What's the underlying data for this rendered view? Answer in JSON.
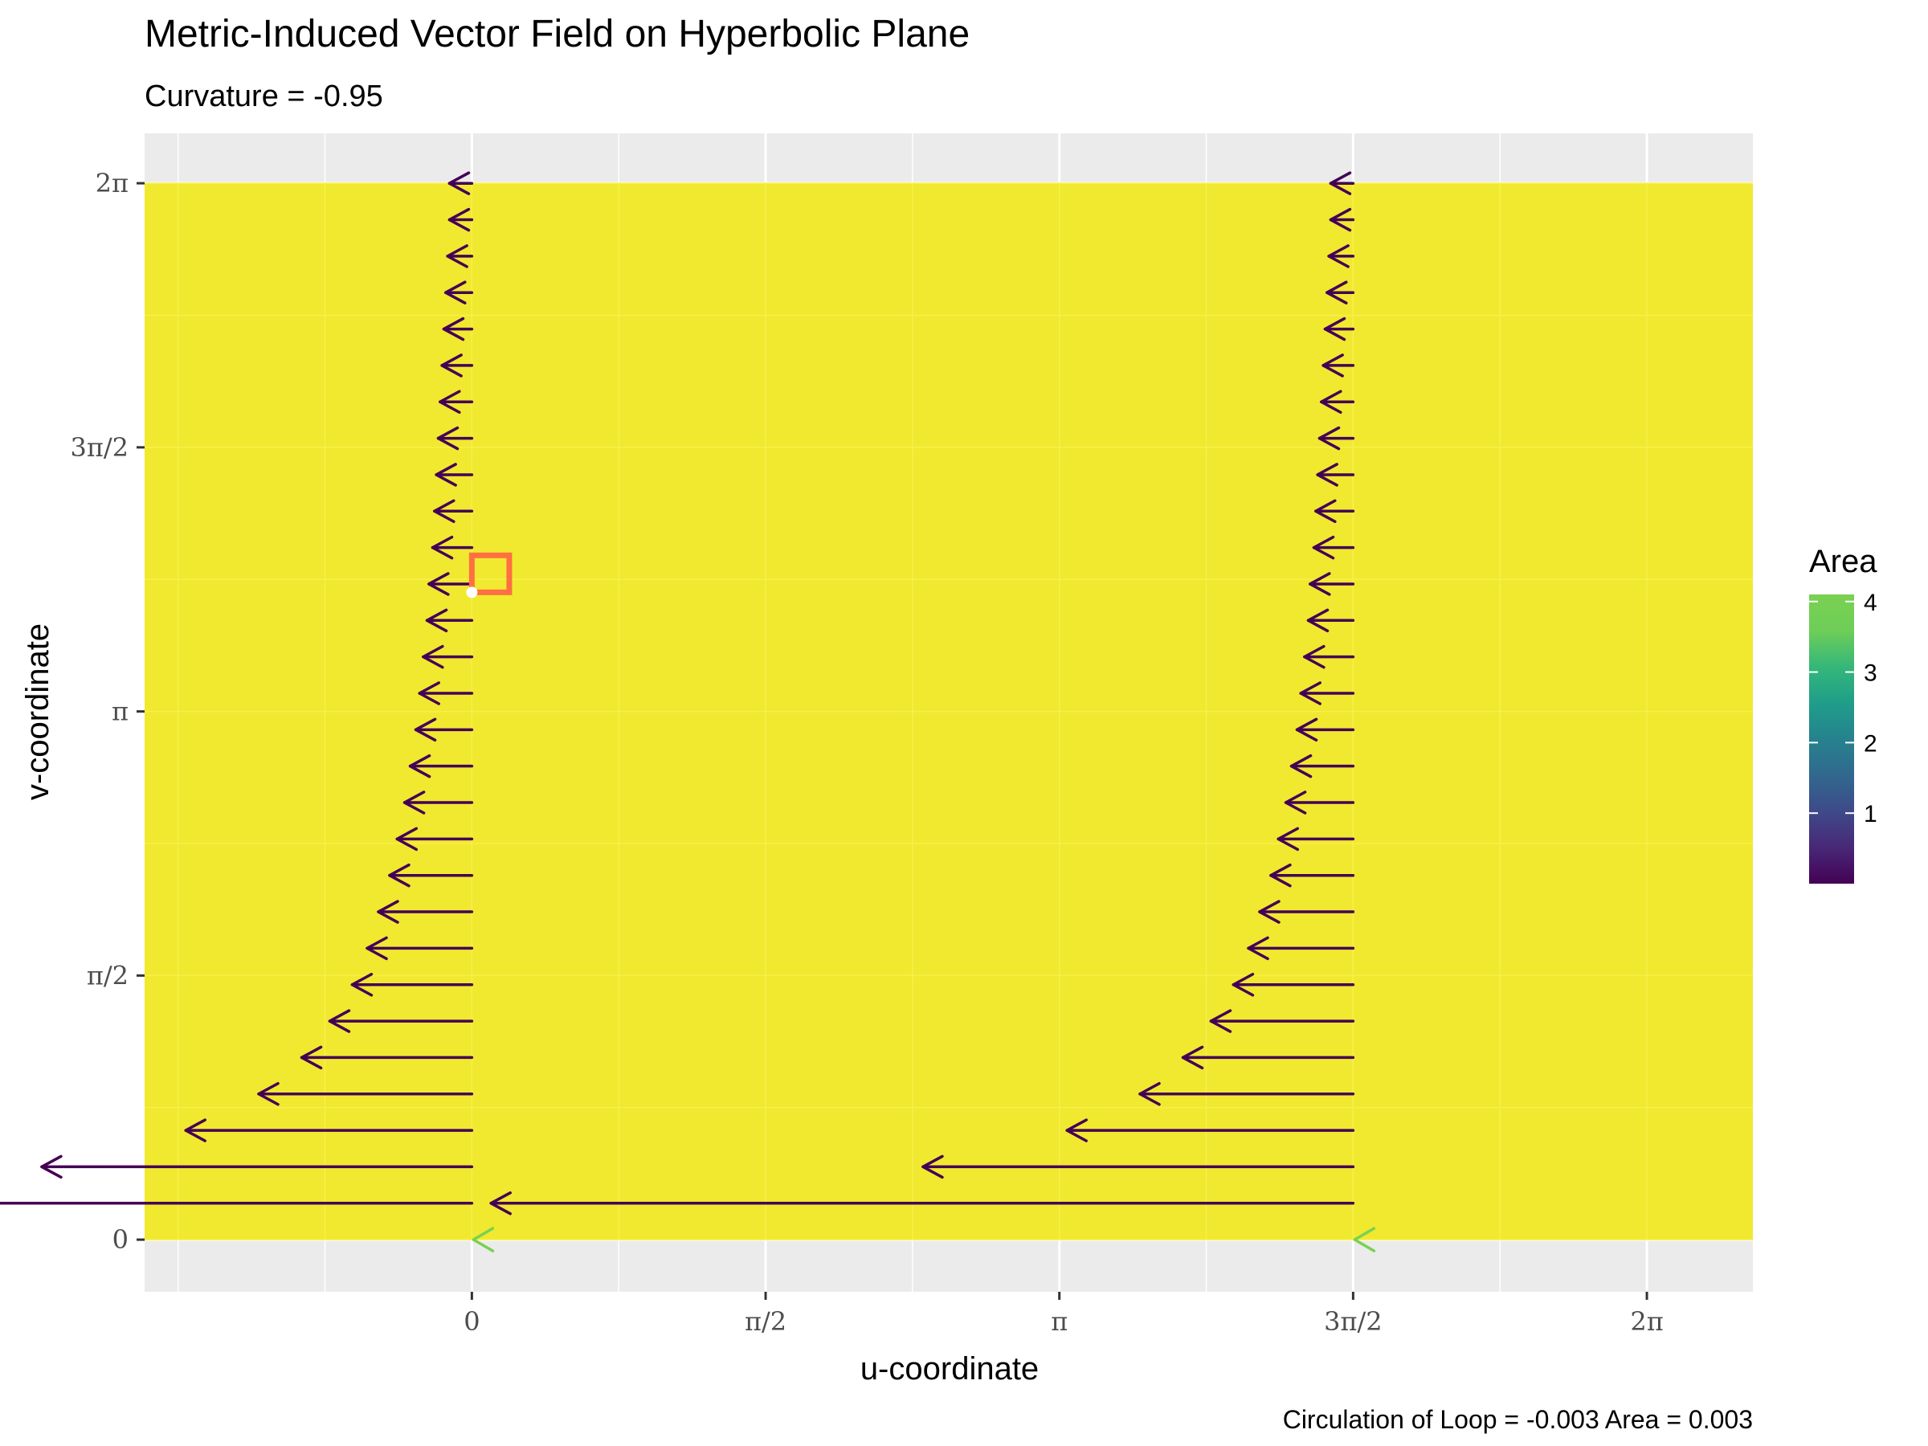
{
  "chart_data": {
    "type": "quiver",
    "title": "Metric-Induced Vector Field on Hyperbolic Plane",
    "subtitle": "Curvature =  -0.95",
    "xlabel": "u-coordinate",
    "ylabel": "v-coordinate",
    "caption": "Circulation of Loop  =  -0.003   Area =  0.003",
    "xlim": [
      -1.75,
      6.85
    ],
    "ylim": [
      -0.31,
      6.58
    ],
    "x_ticks": [
      {
        "value": 0,
        "label": "0"
      },
      {
        "value": 1.5708,
        "label": "π/2"
      },
      {
        "value": 3.1416,
        "label": "π"
      },
      {
        "value": 4.7124,
        "label": "3π/2"
      },
      {
        "value": 6.2832,
        "label": "2π"
      }
    ],
    "y_ticks": [
      {
        "value": 0,
        "label": "0"
      },
      {
        "value": 1.5708,
        "label": "π/2"
      },
      {
        "value": 3.1416,
        "label": "π"
      },
      {
        "value": 4.7124,
        "label": "3π/2"
      },
      {
        "value": 6.2832,
        "label": "2π"
      }
    ],
    "background_tile": {
      "x": [
        -1.75,
        6.85
      ],
      "y": [
        0,
        6.2832
      ],
      "color": "#f0e930"
    },
    "arrow_color": "#440154",
    "arrows": {
      "x_start": [
        0,
        4.7124
      ],
      "v_values": [
        0.2166,
        0.4333,
        0.6499,
        0.8666,
        1.0832,
        1.2999,
        1.5165,
        1.7332,
        1.9498,
        2.1665,
        2.3831,
        2.5998,
        2.8164,
        3.0331,
        3.2497,
        3.4664,
        3.683,
        3.8997,
        4.1163,
        4.333,
        4.5496,
        4.7663,
        4.9829,
        5.1996,
        5.4162,
        5.6329,
        5.8495,
        6.0662,
        6.2828
      ],
      "dx_at_u0": [
        -4.61,
        -2.3,
        -1.53,
        -1.14,
        -0.91,
        -0.76,
        -0.64,
        -0.56,
        -0.5,
        -0.44,
        -0.4,
        -0.36,
        -0.33,
        -0.3,
        -0.28,
        -0.26,
        -0.24,
        -0.23,
        -0.21,
        -0.2,
        -0.19,
        -0.18,
        -0.17,
        -0.16,
        -0.15,
        -0.14,
        -0.13,
        -0.12,
        -0.12
      ],
      "dx_at_u3pi2": [
        -4.61,
        -2.3,
        -1.53,
        -1.14,
        -0.91,
        -0.76,
        -0.64,
        -0.56,
        -0.5,
        -0.44,
        -0.4,
        -0.36,
        -0.33,
        -0.3,
        -0.28,
        -0.26,
        -0.24,
        -0.23,
        -0.21,
        -0.2,
        -0.19,
        -0.18,
        -0.17,
        -0.16,
        -0.15,
        -0.14,
        -0.13,
        -0.12,
        -0.12
      ]
    },
    "zero_arrows": {
      "points": [
        [
          0,
          0
        ],
        [
          4.7124,
          0
        ]
      ],
      "color": "#7ad151"
    },
    "loop": {
      "x": [
        0,
        0.2
      ],
      "y": [
        3.85,
        4.07
      ],
      "color": "#ff6f42"
    },
    "loop_point": {
      "x": 0,
      "y": 3.85,
      "color": "#ffffff"
    },
    "legend": {
      "title": "Area",
      "position": "right",
      "breaks": [
        1,
        2,
        3,
        4
      ],
      "range": [
        0,
        4.1
      ],
      "colors": [
        "#440154",
        "#482878",
        "#3e4a89",
        "#31688e",
        "#26828e",
        "#1f9e89",
        "#35b779",
        "#6ece58",
        "#7ad151"
      ]
    },
    "grid": true
  }
}
